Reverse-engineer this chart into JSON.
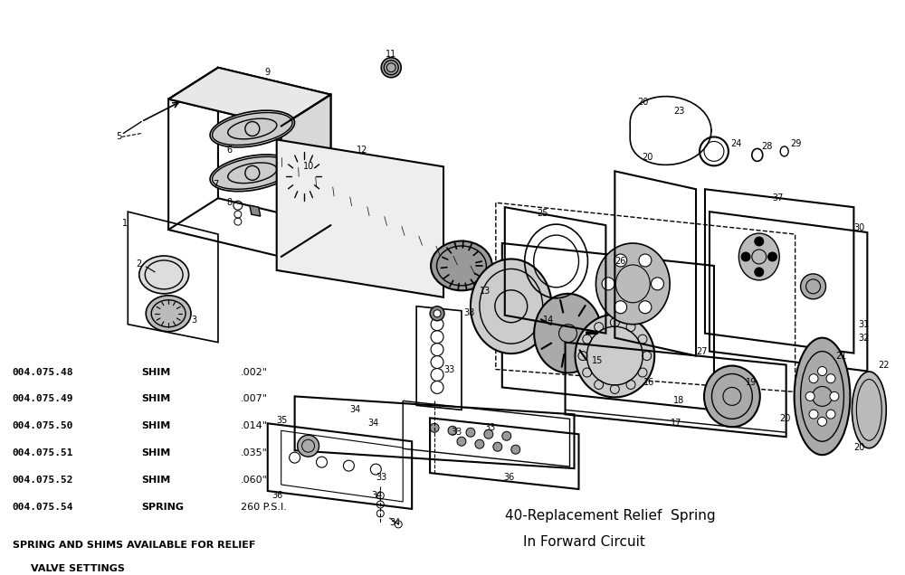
{
  "background_color": "#ffffff",
  "figsize": [
    10.0,
    6.36
  ],
  "dpi": 100,
  "parts_table": [
    {
      "part_no": "004.075.48",
      "type": "SHIM",
      "spec": ".002\""
    },
    {
      "part_no": "004.075.49",
      "type": "SHIM",
      "spec": ".007\""
    },
    {
      "part_no": "004.075.50",
      "type": "SHIM",
      "spec": ".014\""
    },
    {
      "part_no": "004.075.51",
      "type": "SHIM",
      "spec": ".035\""
    },
    {
      "part_no": "004.075.52",
      "type": "SHIM",
      "spec": ".060\""
    },
    {
      "part_no": "004.075.54",
      "type": "SPRING",
      "spec": "260 P.S.I."
    }
  ],
  "note_line1": "SPRING AND SHIMS AVAILABLE FOR RELIEF",
  "note_line2": "VALVE SETTINGS",
  "caption_line1": "40-Replacement Relief  Spring",
  "caption_line2": "In Forward Circuit"
}
